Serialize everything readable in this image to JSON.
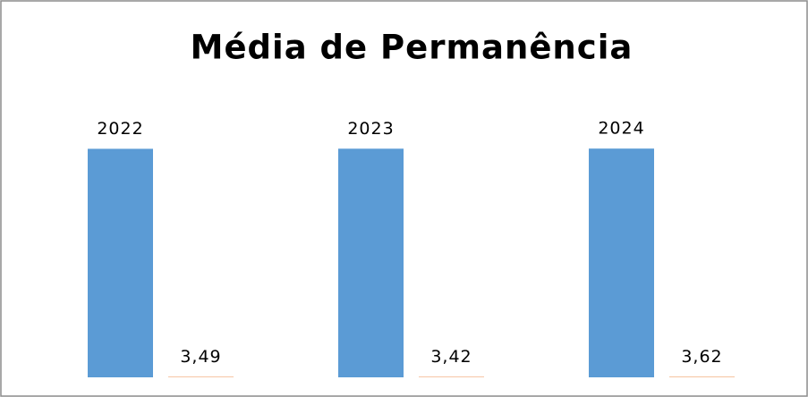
{
  "chart_data": {
    "type": "bar",
    "title": "Média de Permanência",
    "categories": [
      null,
      null,
      null
    ],
    "series": [
      {
        "color": "#5b9bd5",
        "values": [
          2022,
          2023,
          2024
        ]
      },
      {
        "color": "#ed7d31",
        "values": [
          3.49,
          3.42,
          3.62
        ],
        "value_labels": [
          "3,49",
          "3,42",
          "3,62"
        ]
      }
    ],
    "ylim": [
      0,
      2500
    ]
  }
}
